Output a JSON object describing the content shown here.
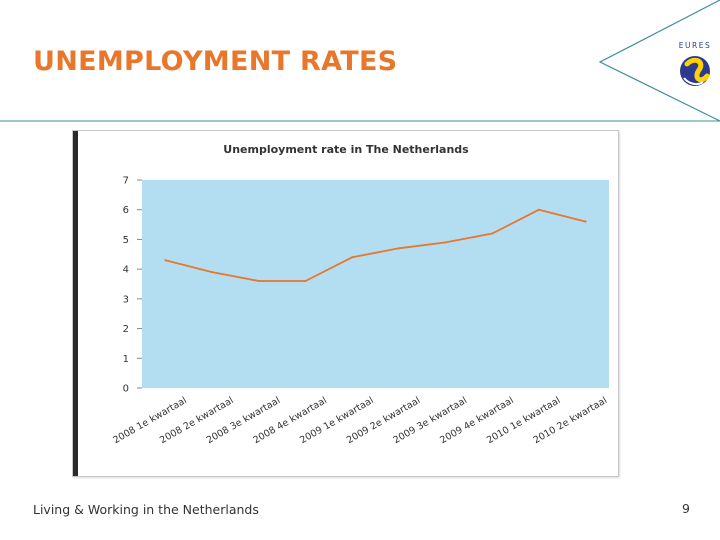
{
  "slide": {
    "title": "UNEMPLOYMENT RATES",
    "footer": "Living & Working in the Netherlands",
    "page_number": "9",
    "logo_text": "EURES"
  },
  "colors": {
    "title": "#e8762b",
    "plot_bg": "#b3def2",
    "line": "#e8762b",
    "accent_line": "#3b8ea5"
  },
  "chart_data": {
    "type": "line",
    "title": "Unemployment rate in The Netherlands",
    "xlabel": "",
    "ylabel": "",
    "ylim": [
      0,
      7
    ],
    "y_ticks": [
      0,
      1,
      2,
      3,
      4,
      5,
      6,
      7
    ],
    "grid": false,
    "legend": "none",
    "categories": [
      "2008 1e kwartaal",
      "2008 2e kwartaal",
      "2008 3e kwartaal",
      "2008 4e kwartaal",
      "2009 1e kwartaal",
      "2009 2e kwartaal",
      "2009 3e kwartaal",
      "2009 4e kwartaal",
      "2010 1e kwartaal",
      "2010 2e kwartaal"
    ],
    "series": [
      {
        "values": [
          4.3,
          3.9,
          3.6,
          3.6,
          4.4,
          4.7,
          4.9,
          5.2,
          6.0,
          5.6
        ]
      }
    ]
  }
}
